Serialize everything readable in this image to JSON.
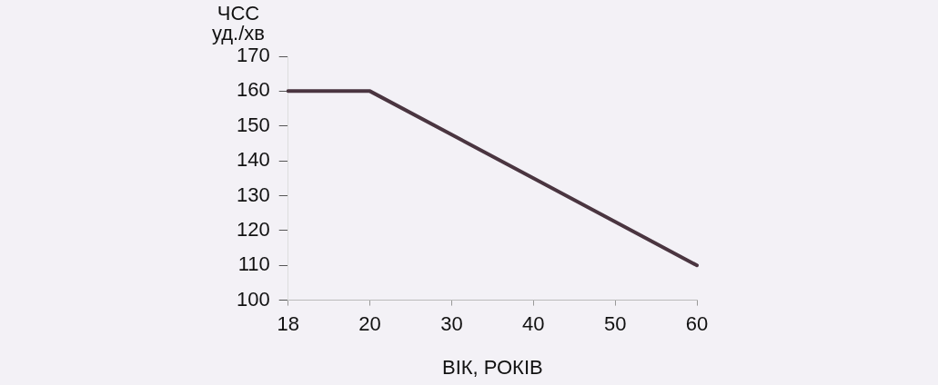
{
  "chart_data": {
    "type": "line",
    "categories": [
      "18",
      "20",
      "30",
      "40",
      "50",
      "60"
    ],
    "series": [
      {
        "color": "#4a3540",
        "values": [
          160,
          160,
          147.5,
          135,
          122.5,
          110
        ]
      }
    ],
    "ylim": [
      100,
      170
    ],
    "yticks": [
      100,
      110,
      120,
      130,
      140,
      150,
      160,
      170
    ],
    "xlabel": "ВІК, РОКІВ",
    "ylabel": "ЧСС\nуд./хв",
    "grid": false,
    "legend": false,
    "marker": "none",
    "line_style": "solid"
  }
}
